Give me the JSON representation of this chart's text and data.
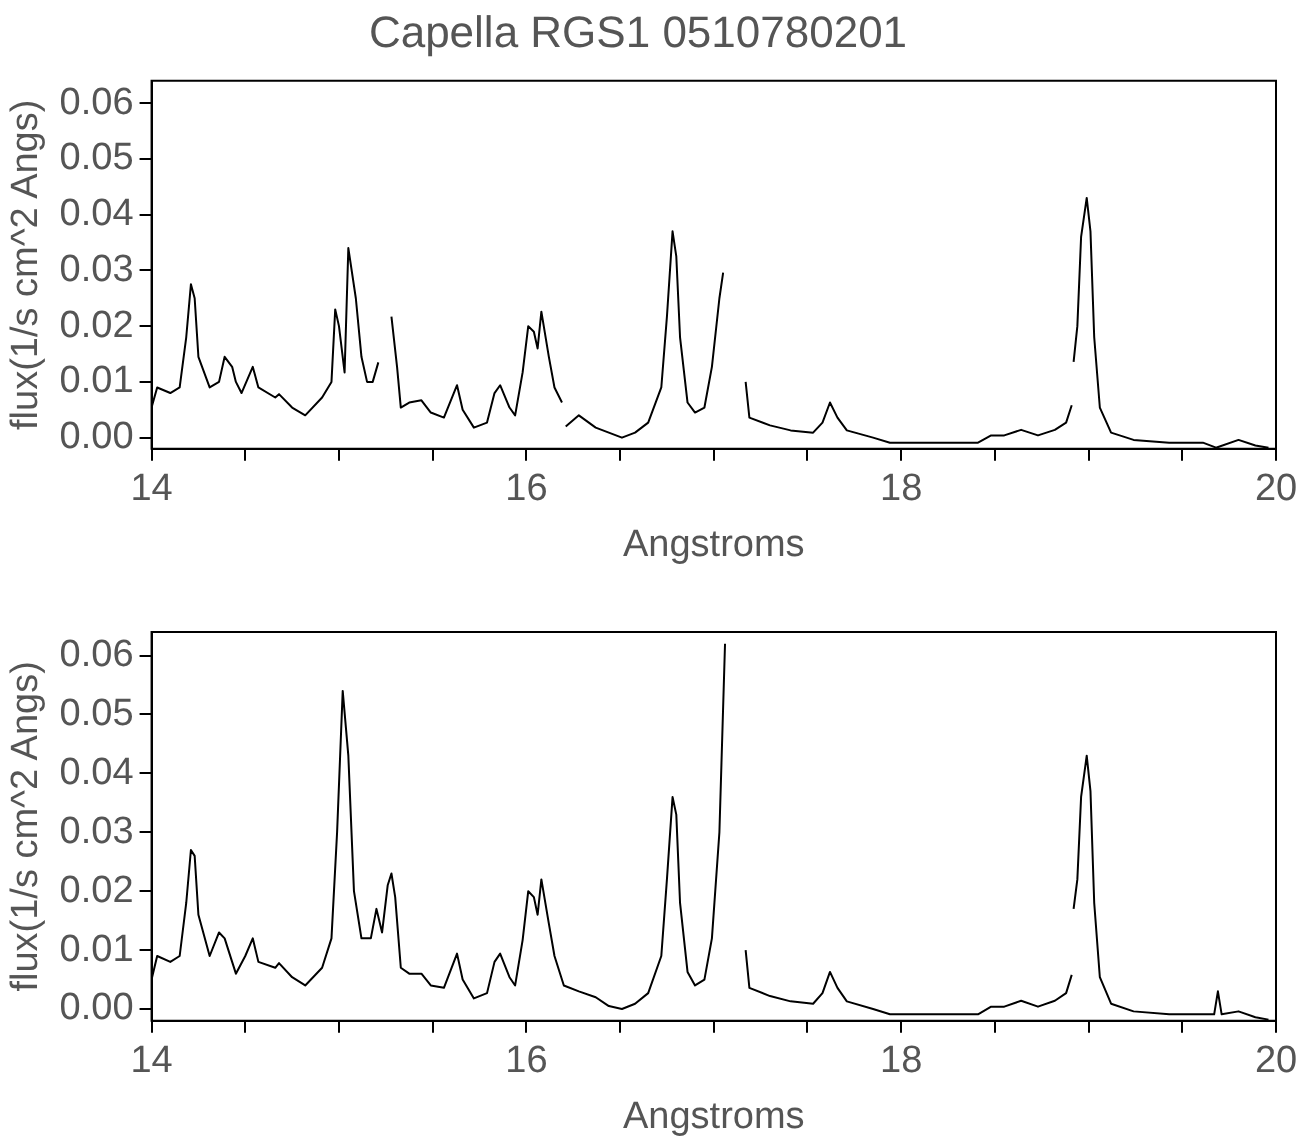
{
  "chart_data": [
    {
      "type": "line",
      "title": "Capella RGS1 0510780201",
      "xlabel": "Angstroms",
      "ylabel": "flux(1/s cm^2 Angs)",
      "x": [
        14.0,
        14.03,
        14.1,
        14.15,
        14.185,
        14.21,
        14.23,
        14.25,
        14.31,
        14.36,
        14.39,
        14.43,
        14.45,
        14.48,
        14.54,
        14.57,
        14.66,
        14.68,
        14.75,
        14.82,
        14.91,
        14.96,
        14.98,
        15.0,
        15.03,
        15.05,
        15.09,
        15.12,
        15.15,
        15.18,
        15.21,
        15.25,
        15.28,
        15.31,
        15.33,
        15.375,
        15.44,
        15.49,
        15.56,
        15.63,
        15.66,
        15.72,
        15.79,
        15.83,
        15.86,
        15.91,
        15.94,
        15.98,
        16.01,
        16.04,
        16.06,
        16.08,
        16.12,
        16.15,
        16.19,
        16.2,
        16.21,
        16.28,
        16.37,
        16.44,
        16.51,
        16.58,
        16.65,
        16.72,
        16.75,
        16.78,
        16.8,
        16.82,
        16.86,
        16.9,
        16.95,
        16.99,
        17.03,
        17.05,
        17.1,
        17.17,
        17.19,
        17.3,
        17.41,
        17.53,
        17.58,
        17.62,
        17.66,
        17.71,
        17.85,
        17.94,
        18.18,
        18.41,
        18.48,
        18.55,
        18.64,
        18.73,
        18.82,
        18.88,
        18.91,
        18.915,
        18.92,
        18.94,
        18.96,
        18.99,
        19.01,
        19.03,
        19.06,
        19.12,
        19.24,
        19.43,
        19.61,
        19.68,
        19.8,
        19.89,
        19.96
      ],
      "series": [
        {
          "color": "#000000",
          "values": [
            0.0054,
            0.009,
            0.008,
            0.009,
            0.018,
            0.0275,
            0.025,
            0.0145,
            0.009,
            0.01,
            0.0145,
            0.0127,
            0.01,
            0.008,
            0.0127,
            0.009,
            0.0072,
            0.0078,
            0.0054,
            0.004,
            0.0072,
            0.01,
            0.023,
            0.02,
            0.0117,
            0.034,
            0.025,
            0.0145,
            0.01,
            0.01,
            0.0135,
            null,
            0.0217,
            0.0127,
            0.0054,
            0.0063,
            0.0067,
            0.0045,
            0.0036,
            0.0094,
            0.005,
            0.0018,
            0.0027,
            0.008,
            0.0094,
            0.0054,
            0.004,
            0.0117,
            0.02,
            0.019,
            0.016,
            0.0226,
            0.0145,
            0.009,
            0.0063,
            null,
            0.002,
            0.004,
            0.0018,
            0.0009,
            0.0,
            0.0009,
            0.0027,
            0.009,
            0.0217,
            0.037,
            0.0325,
            0.018,
            0.0063,
            0.0045,
            0.0054,
            0.0127,
            0.025,
            0.0296,
            null,
            0.01,
            0.0036,
            0.0022,
            0.0013,
            0.0009,
            0.0027,
            0.0063,
            0.0036,
            0.0013,
            0.0,
            -0.0009,
            -0.0009,
            -0.0009,
            0.0004,
            0.0004,
            0.0014,
            0.0004,
            0.0014,
            0.0027,
            0.0058,
            null,
            0.0136,
            0.02,
            0.036,
            0.043,
            0.037,
            0.018,
            0.0054,
            0.0009,
            -0.0004,
            -0.0009,
            -0.0009,
            -0.0018,
            -0.0004,
            -0.0014,
            -0.0018
          ]
        }
      ],
      "xlim": [
        14,
        20
      ],
      "ylim": [
        -0.002,
        0.064
      ],
      "xticks": [
        14,
        {
          "value": 14.5,
          "label": null
        },
        {
          "value": 15,
          "label": null
        },
        {
          "value": 15.5,
          "label": null
        },
        16,
        {
          "value": 16.5,
          "label": null
        },
        {
          "value": 17,
          "label": null
        },
        {
          "value": 17.5,
          "label": null
        },
        18,
        {
          "value": 18.5,
          "label": null
        },
        {
          "value": 19,
          "label": null
        },
        {
          "value": 19.5,
          "label": null
        },
        20
      ],
      "yticks": [
        {
          "value": 0,
          "label": "0.00"
        },
        {
          "value": 0.01,
          "label": "0.01"
        },
        {
          "value": 0.02,
          "label": "0.02"
        },
        {
          "value": 0.03,
          "label": "0.03"
        },
        {
          "value": 0.04,
          "label": "0.04"
        },
        {
          "value": 0.05,
          "label": "0.05"
        },
        {
          "value": 0.06,
          "label": "0.06"
        }
      ]
    },
    {
      "type": "line",
      "xlabel": "Angstroms",
      "ylabel": "flux(1/s cm^2 Angs)",
      "x": [
        14.0,
        14.03,
        14.1,
        14.15,
        14.185,
        14.21,
        14.23,
        14.25,
        14.31,
        14.36,
        14.39,
        14.43,
        14.45,
        14.5,
        14.54,
        14.57,
        14.66,
        14.68,
        14.75,
        14.82,
        14.91,
        14.96,
        14.99,
        15.02,
        15.05,
        15.08,
        15.12,
        15.17,
        15.2,
        15.23,
        15.26,
        15.28,
        15.3,
        15.33,
        15.375,
        15.44,
        15.49,
        15.56,
        15.63,
        15.66,
        15.72,
        15.79,
        15.83,
        15.86,
        15.91,
        15.94,
        15.98,
        16.01,
        16.04,
        16.06,
        16.08,
        16.12,
        16.15,
        16.2,
        16.28,
        16.37,
        16.44,
        16.51,
        16.58,
        16.65,
        16.72,
        16.75,
        16.78,
        16.8,
        16.82,
        16.86,
        16.9,
        16.95,
        16.99,
        17.03,
        17.06,
        17.1,
        17.17,
        17.19,
        17.3,
        17.41,
        17.53,
        17.58,
        17.62,
        17.66,
        17.71,
        17.85,
        17.94,
        18.18,
        18.41,
        18.48,
        18.55,
        18.64,
        18.73,
        18.82,
        18.88,
        18.91,
        18.915,
        18.92,
        18.94,
        18.96,
        18.99,
        19.01,
        19.03,
        19.06,
        19.12,
        19.24,
        19.43,
        19.61,
        19.67,
        19.69,
        19.71,
        19.8,
        19.89,
        19.96
      ],
      "series": [
        {
          "color": "#000000",
          "values": [
            0.005,
            0.009,
            0.008,
            0.009,
            0.018,
            0.027,
            0.026,
            0.016,
            0.009,
            0.013,
            0.012,
            0.008,
            0.006,
            0.009,
            0.012,
            0.008,
            0.007,
            0.0078,
            0.0054,
            0.004,
            0.007,
            0.012,
            0.03,
            0.054,
            0.043,
            0.02,
            0.012,
            0.012,
            0.017,
            0.013,
            0.021,
            0.023,
            0.019,
            0.007,
            0.006,
            0.006,
            0.004,
            0.0036,
            0.0094,
            0.005,
            0.0018,
            0.0027,
            0.008,
            0.0094,
            0.0054,
            0.004,
            0.0117,
            0.02,
            0.019,
            0.016,
            0.022,
            0.0145,
            0.009,
            0.004,
            0.003,
            0.002,
            0.0005,
            0.0,
            0.0009,
            0.0027,
            0.009,
            0.022,
            0.036,
            0.033,
            0.018,
            0.0063,
            0.004,
            0.005,
            0.012,
            0.03,
            0.062,
            null,
            0.01,
            0.0036,
            0.0022,
            0.0013,
            0.0009,
            0.0027,
            0.0063,
            0.0036,
            0.0013,
            0.0,
            -0.0009,
            -0.0009,
            -0.0009,
            0.0004,
            0.0004,
            0.0014,
            0.0004,
            0.0014,
            0.0027,
            0.0058,
            null,
            0.017,
            0.022,
            0.036,
            0.043,
            0.037,
            0.018,
            0.0054,
            0.0009,
            -0.0004,
            -0.0009,
            -0.0009,
            -0.0009,
            0.003,
            -0.0009,
            -0.0004,
            -0.0014,
            -0.0018
          ]
        }
      ],
      "xlim": [
        14,
        20
      ],
      "ylim": [
        -0.002,
        0.064
      ],
      "xticks": [
        14,
        {
          "value": 14.5,
          "label": null
        },
        {
          "value": 15,
          "label": null
        },
        {
          "value": 15.5,
          "label": null
        },
        16,
        {
          "value": 16.5,
          "label": null
        },
        {
          "value": 17,
          "label": null
        },
        {
          "value": 17.5,
          "label": null
        },
        18,
        {
          "value": 18.5,
          "label": null
        },
        {
          "value": 19,
          "label": null
        },
        {
          "value": 19.5,
          "label": null
        },
        20
      ],
      "yticks": [
        {
          "value": 0,
          "label": "0.00"
        },
        {
          "value": 0.01,
          "label": "0.01"
        },
        {
          "value": 0.02,
          "label": "0.02"
        },
        {
          "value": 0.03,
          "label": "0.03"
        },
        {
          "value": 0.04,
          "label": "0.04"
        },
        {
          "value": 0.05,
          "label": "0.05"
        },
        {
          "value": 0.06,
          "label": "0.06"
        }
      ]
    }
  ]
}
